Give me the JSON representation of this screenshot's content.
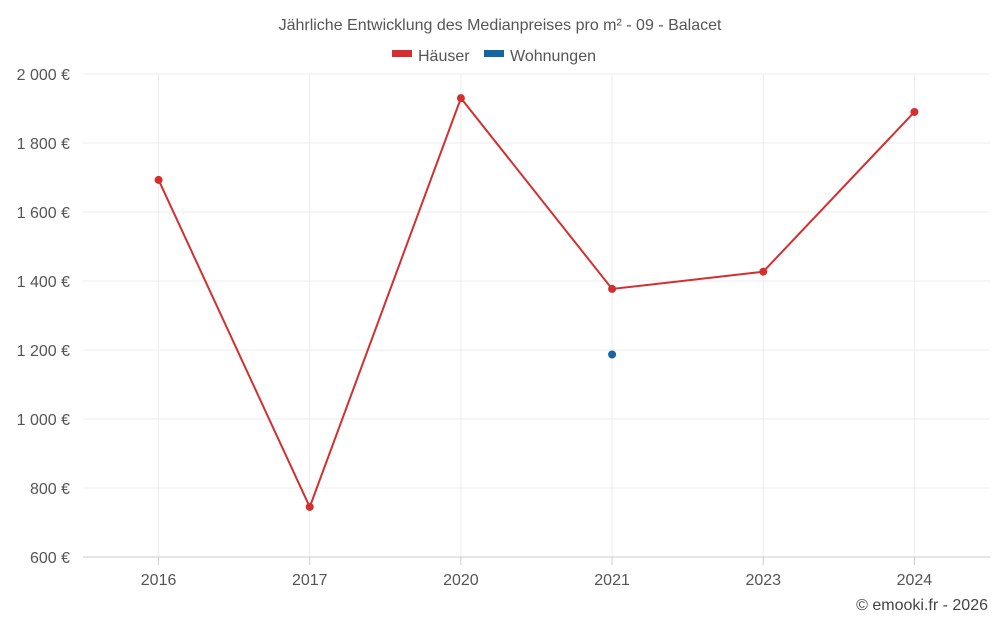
{
  "chart_data": {
    "type": "line",
    "title": "Jährliche Entwicklung des Medianpreises pro m² - 09 - Balacet",
    "categories": [
      "2016",
      "2017",
      "2020",
      "2021",
      "2023",
      "2024"
    ],
    "series": [
      {
        "name": "Häuser",
        "color": "#d32f2f",
        "values": [
          1693,
          745,
          1930,
          1377,
          1427,
          1890
        ]
      },
      {
        "name": "Wohnungen",
        "color": "#1565a0",
        "values": [
          null,
          null,
          null,
          1187,
          null,
          null
        ]
      }
    ],
    "ylim": [
      600,
      2000
    ],
    "yticks": [
      600,
      800,
      1000,
      1200,
      1400,
      1600,
      1800,
      2000
    ],
    "ytick_labels": [
      "600 €",
      "800 €",
      "1 000 €",
      "1 200 €",
      "1 400 €",
      "1 600 €",
      "1 800 €",
      "2 000 €"
    ],
    "grid": true,
    "legend_position": "top-center",
    "credit": "© emooki.fr - 2026"
  }
}
